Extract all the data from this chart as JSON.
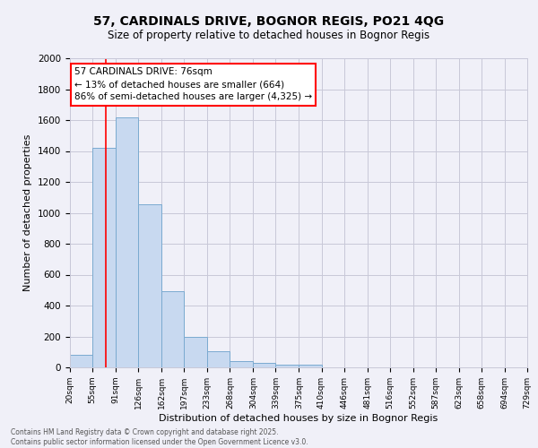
{
  "title": "57, CARDINALS DRIVE, BOGNOR REGIS, PO21 4QG",
  "subtitle": "Size of property relative to detached houses in Bognor Regis",
  "xlabel": "Distribution of detached houses by size in Bognor Regis",
  "ylabel": "Number of detached properties",
  "bin_labels": [
    "20sqm",
    "55sqm",
    "91sqm",
    "126sqm",
    "162sqm",
    "197sqm",
    "233sqm",
    "268sqm",
    "304sqm",
    "339sqm",
    "375sqm",
    "410sqm",
    "446sqm",
    "481sqm",
    "516sqm",
    "552sqm",
    "587sqm",
    "623sqm",
    "658sqm",
    "694sqm",
    "729sqm"
  ],
  "bar_heights": [
    80,
    1420,
    1620,
    1055,
    490,
    200,
    105,
    40,
    30,
    20,
    20,
    0,
    0,
    0,
    0,
    0,
    0,
    0,
    0,
    0,
    0
  ],
  "bar_color": "#c8d9f0",
  "bar_edge_color": "#7aaad0",
  "background_color": "#f0f0f8",
  "grid_color": "#c8c8d8",
  "annotation_text": "57 CARDINALS DRIVE: 76sqm\n← 13% of detached houses are smaller (664)\n86% of semi-detached houses are larger (4,325) →",
  "annotation_box_color": "#ffffff",
  "annotation_box_edge_color": "red",
  "red_line_x": 76,
  "red_line_color": "red",
  "ylim": [
    0,
    2000
  ],
  "yticks": [
    0,
    200,
    400,
    600,
    800,
    1000,
    1200,
    1400,
    1600,
    1800,
    2000
  ],
  "footer_line1": "Contains HM Land Registry data © Crown copyright and database right 2025.",
  "footer_line2": "Contains public sector information licensed under the Open Government Licence v3.0.",
  "bin_edges": [
    20,
    55,
    91,
    126,
    162,
    197,
    233,
    268,
    304,
    339,
    375,
    410,
    446,
    481,
    516,
    552,
    587,
    623,
    658,
    694,
    729
  ]
}
